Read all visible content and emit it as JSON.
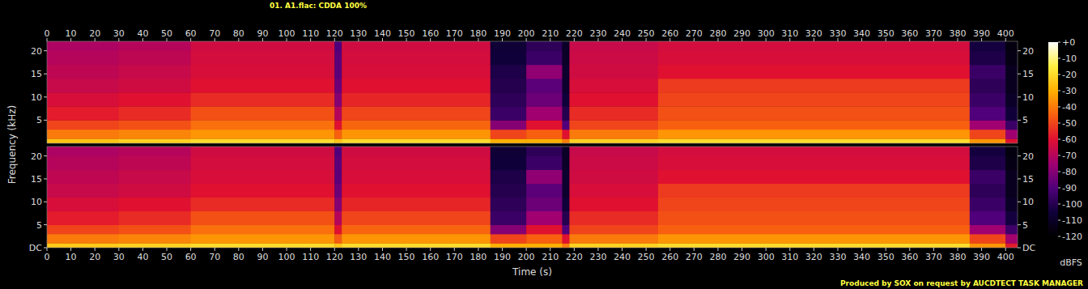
{
  "chart_data": {
    "type": "heatmap",
    "title": "01. A1.flac: CDDA 100%",
    "x_label": "Time (s)",
    "y_label": "Frequency (kHz)",
    "annotations": [
      "Produced by SOX on request by AUCDTECT TASK MANAGER"
    ],
    "xlim": [
      0,
      405
    ],
    "xticks": [
      0,
      10,
      20,
      30,
      40,
      50,
      60,
      70,
      80,
      90,
      100,
      110,
      120,
      130,
      140,
      150,
      160,
      170,
      180,
      190,
      200,
      210,
      220,
      230,
      240,
      250,
      260,
      270,
      280,
      290,
      300,
      310,
      320,
      330,
      340,
      350,
      360,
      370,
      380,
      390,
      400
    ],
    "ylim": [
      0,
      22.05
    ],
    "x_bins": [
      0,
      30,
      60,
      120,
      123,
      185,
      200,
      215,
      218,
      255,
      385,
      400,
      405
    ],
    "y_bins": [
      0,
      1,
      3,
      5,
      8,
      11,
      14,
      17,
      20,
      22.05
    ],
    "channels": [
      {
        "yticks": [
          5,
          10,
          15,
          20
        ],
        "cells": [
          [
            -25,
            -22,
            -20,
            -25,
            -20,
            -30,
            -30,
            -40,
            -22,
            -20,
            -35,
            -60
          ],
          [
            -40,
            -38,
            -35,
            -45,
            -35,
            -50,
            -45,
            -60,
            -40,
            -35,
            -50,
            -75
          ],
          [
            -50,
            -48,
            -42,
            -60,
            -44,
            -80,
            -60,
            -90,
            -50,
            -45,
            -75,
            -95
          ],
          [
            -58,
            -55,
            -48,
            -70,
            -50,
            -95,
            -75,
            -100,
            -55,
            -48,
            -90,
            -105
          ],
          [
            -62,
            -60,
            -55,
            -80,
            -56,
            -98,
            -85,
            -105,
            -60,
            -50,
            -95,
            -110
          ],
          [
            -66,
            -64,
            -60,
            -85,
            -60,
            -100,
            -88,
            -108,
            -62,
            -52,
            -98,
            -112
          ],
          [
            -68,
            -66,
            -62,
            -88,
            -62,
            -102,
            -78,
            -108,
            -64,
            -60,
            -95,
            -112
          ],
          [
            -70,
            -68,
            -63,
            -88,
            -63,
            -105,
            -95,
            -110,
            -65,
            -62,
            -102,
            -115
          ],
          [
            -72,
            -70,
            -64,
            -90,
            -64,
            -106,
            -98,
            -110,
            -66,
            -63,
            -104,
            -116
          ]
        ]
      },
      {
        "yticks": [
          {
            "value": 0,
            "label": "DC"
          },
          5,
          10,
          15,
          20
        ],
        "cells": [
          [
            -24,
            -22,
            -20,
            -25,
            -20,
            -30,
            -30,
            -40,
            -22,
            -20,
            -35,
            -58
          ],
          [
            -40,
            -38,
            -35,
            -46,
            -35,
            -50,
            -45,
            -60,
            -40,
            -35,
            -50,
            -74
          ],
          [
            -50,
            -48,
            -42,
            -60,
            -44,
            -80,
            -60,
            -90,
            -50,
            -45,
            -75,
            -94
          ],
          [
            -58,
            -55,
            -48,
            -70,
            -50,
            -95,
            -75,
            -100,
            -55,
            -48,
            -90,
            -104
          ],
          [
            -62,
            -60,
            -55,
            -80,
            -56,
            -98,
            -85,
            -105,
            -60,
            -50,
            -95,
            -110
          ],
          [
            -66,
            -64,
            -60,
            -85,
            -60,
            -100,
            -88,
            -108,
            -62,
            -52,
            -98,
            -112
          ],
          [
            -68,
            -66,
            -62,
            -88,
            -62,
            -102,
            -78,
            -108,
            -64,
            -60,
            -95,
            -112
          ],
          [
            -70,
            -68,
            -63,
            -88,
            -63,
            -105,
            -95,
            -110,
            -65,
            -62,
            -102,
            -115
          ],
          [
            -72,
            -70,
            -64,
            -90,
            -64,
            -106,
            -98,
            -110,
            -66,
            -63,
            -104,
            -116
          ]
        ]
      }
    ],
    "colorbar": {
      "label": "dBFS",
      "range": [
        -120,
        0
      ],
      "ticks": [
        {
          "value": 0,
          "label": "+0"
        },
        -10,
        -20,
        -30,
        -40,
        -50,
        -60,
        -70,
        -80,
        -90,
        -100,
        -110,
        -120
      ]
    }
  }
}
